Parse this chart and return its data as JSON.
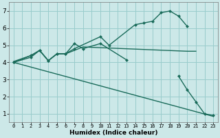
{
  "xlabel": "Humidex (Indice chaleur)",
  "bg_color": "#cce8e8",
  "grid_color": "#99cccc",
  "line_color": "#1a6b5a",
  "xlim": [
    -0.5,
    23.5
  ],
  "ylim": [
    0.5,
    7.5
  ],
  "xticks": [
    0,
    1,
    2,
    3,
    4,
    5,
    6,
    7,
    8,
    9,
    10,
    11,
    12,
    13,
    14,
    15,
    16,
    17,
    18,
    19,
    20,
    21,
    22,
    23
  ],
  "yticks": [
    1,
    2,
    3,
    4,
    5,
    6,
    7
  ],
  "line1_x": [
    0,
    2,
    3,
    4,
    5,
    6,
    7,
    10,
    11,
    14,
    15,
    16,
    17,
    18,
    19,
    20
  ],
  "line1_y": [
    4.0,
    4.3,
    4.7,
    4.1,
    4.5,
    4.5,
    4.8,
    5.5,
    5.0,
    6.2,
    6.3,
    6.4,
    6.9,
    7.0,
    6.7,
    6.1
  ],
  "line2_x": [
    0,
    2,
    3,
    4,
    5,
    6,
    7,
    8,
    10,
    13
  ],
  "line2_y": [
    4.0,
    4.4,
    4.7,
    4.1,
    4.5,
    4.5,
    5.1,
    4.8,
    5.1,
    4.15
  ],
  "line3_x": [
    0,
    2,
    3,
    4,
    5,
    6,
    8,
    20,
    21
  ],
  "line3_y": [
    4.05,
    4.4,
    4.7,
    4.1,
    4.5,
    4.5,
    4.9,
    4.65,
    4.65
  ],
  "line4_x": [
    0,
    23
  ],
  "line4_y": [
    4.0,
    0.85
  ],
  "line5_x": [
    19,
    20,
    21,
    22,
    23
  ],
  "line5_y": [
    3.2,
    2.4,
    1.7,
    1.0,
    0.9
  ]
}
